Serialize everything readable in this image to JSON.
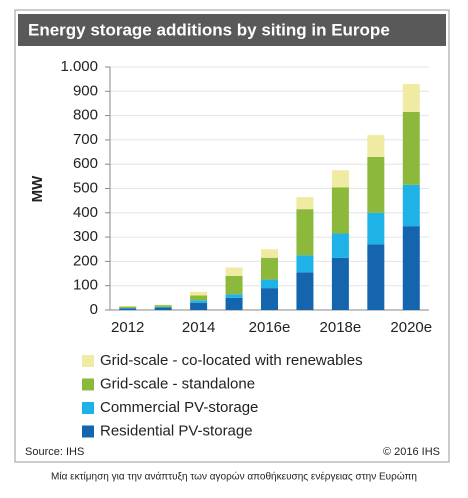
{
  "chart_data": {
    "type": "stacked-bar",
    "title": "Energy storage additions by siting in Europe",
    "y_label": "MW",
    "categories": [
      "2012",
      null,
      "2014",
      null,
      "2016e",
      null,
      "2018e",
      null,
      "2020e"
    ],
    "series": [
      {
        "name": "Residential PV-storage",
        "color": "#1464ae",
        "values": [
          6,
          10,
          30,
          50,
          90,
          155,
          215,
          270,
          345
        ]
      },
      {
        "name": "Commercial PV-storage",
        "color": "#1fb2e6",
        "values": [
          2,
          3,
          10,
          15,
          35,
          70,
          100,
          130,
          170
        ]
      },
      {
        "name": "Grid-scale - standalone",
        "color": "#8cb83b",
        "values": [
          6,
          7,
          20,
          75,
          90,
          190,
          190,
          230,
          300
        ]
      },
      {
        "name": "Grid-scale - co-located with renewables",
        "color": "#efeba2",
        "values": [
          2,
          2,
          15,
          35,
          35,
          50,
          70,
          90,
          115
        ]
      }
    ],
    "ylim": [
      0,
      1000
    ],
    "yticks": [
      0,
      100,
      200,
      300,
      400,
      500,
      600,
      700,
      800,
      900,
      {
        "value": 1000,
        "label": "1.000"
      }
    ],
    "grid": true,
    "source": "Source: IHS",
    "copyright": "© 2016 IHS",
    "caption": "Μία εκτίμηση για την ανάπτυξη των αγορών αποθήκευσης ενέργειας στην Ευρώπη"
  }
}
